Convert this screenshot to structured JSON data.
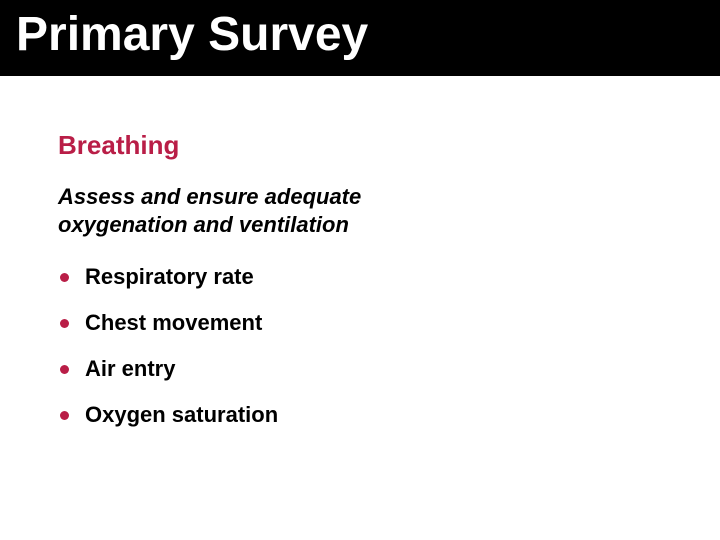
{
  "title": {
    "text": "Primary Survey",
    "color": "#ffffff",
    "background": "#000000",
    "fontsize": 48
  },
  "subhead": {
    "text": "Breathing",
    "color": "#b91e47",
    "fontsize": 26
  },
  "description": {
    "text": "Assess and ensure adequate oxygenation and ventilation",
    "color": "#000000",
    "fontsize": 22
  },
  "bullets": {
    "dot_color": "#b91e47",
    "dot_size": 9,
    "text_color": "#000000",
    "fontsize": 22,
    "items": [
      "Respiratory rate",
      "Chest movement",
      "Air entry",
      "Oxygen saturation"
    ]
  },
  "slide_background": "#ffffff"
}
